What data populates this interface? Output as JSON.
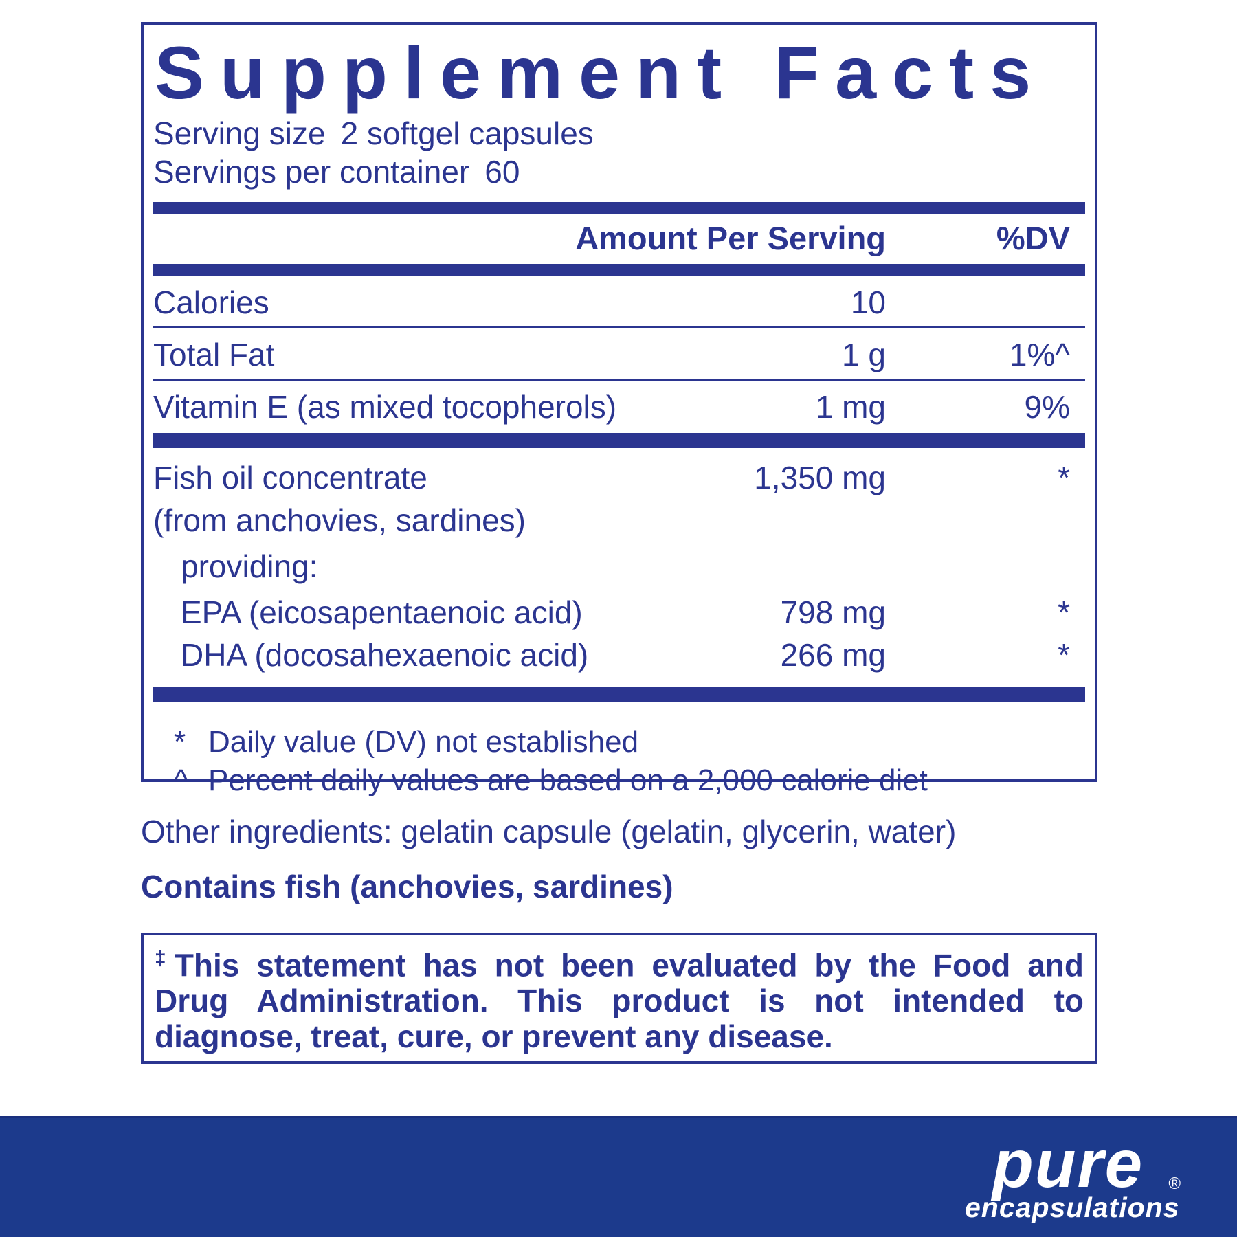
{
  "colors": {
    "navy": "#2B3590",
    "band_blue": "#1C3A8C",
    "white": "#FFFFFF"
  },
  "panel": {
    "title": "Supplement Facts",
    "serving_size_label": "Serving size",
    "serving_size_value": "2 softgel capsules",
    "servings_label": "Servings per container",
    "servings_value": "60",
    "header": {
      "amount": "Amount Per Serving",
      "dv": "%DV"
    },
    "rows": [
      {
        "name": "Calories",
        "amount": "10",
        "dv": ""
      },
      {
        "name": "Total Fat",
        "amount": "1 g",
        "dv": "1%^"
      },
      {
        "name": "Vitamin E (as mixed tocopherols)",
        "amount": "1 mg",
        "dv": "9%"
      }
    ],
    "group": {
      "line1": {
        "name": "Fish oil concentrate",
        "amount": "1,350 mg",
        "dv": "*"
      },
      "line2": "(from anchovies, sardines)",
      "line3": "providing:",
      "sub": [
        {
          "name": "EPA (eicosapentaenoic acid)",
          "amount": "798 mg",
          "dv": "*"
        },
        {
          "name": "DHA (docosahexaenoic acid)",
          "amount": "266 mg",
          "dv": "*"
        }
      ]
    },
    "footnotes": [
      {
        "symbol": "*",
        "text": "Daily value (DV) not established"
      },
      {
        "symbol": "^",
        "text": "Percent daily values are based on a 2,000 calorie diet"
      }
    ]
  },
  "other_ingredients": "Other ingredients: gelatin capsule (gelatin, glycerin, water)",
  "contains": "Contains fish (anchovies, sardines)",
  "disclaimer": {
    "symbol": "‡",
    "lines": [
      "This statement has not been evaluated by the Food and",
      "Drug Administration. This product is not intended to",
      "diagnose, treat, cure, or prevent any disease."
    ]
  },
  "brand": {
    "name": "pure",
    "sub": "encapsulations",
    "reg": "®"
  }
}
